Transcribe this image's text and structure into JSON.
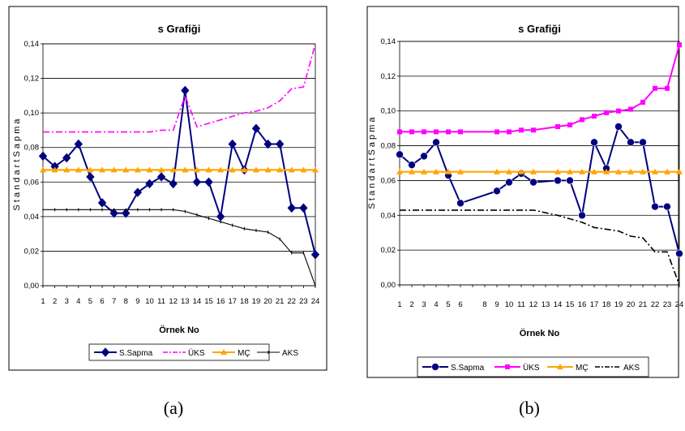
{
  "chart_data": [
    {
      "type": "line",
      "title": "s Grafiği",
      "xlabel": "Örnek No",
      "ylabel": "S t a n d a r t  S a p m a",
      "caption": "(a)",
      "categories": [
        "1",
        "2",
        "3",
        "4",
        "5",
        "6",
        "7",
        "8",
        "9",
        "10",
        "11",
        "12",
        "13",
        "14",
        "15",
        "16",
        "17",
        "18",
        "19",
        "20",
        "21",
        "22",
        "23",
        "24"
      ],
      "ylim": [
        0,
        0.14
      ],
      "yticks": [
        "0,00",
        "0,02",
        "0,04",
        "0,06",
        "0,08",
        "0,10",
        "0,12",
        "0,14"
      ],
      "grid": true,
      "legend": "bottom",
      "series": [
        {
          "name": "S.Sapma",
          "color": "#000080",
          "style": "solid-diamond",
          "values": [
            0.075,
            0.069,
            0.074,
            0.082,
            0.063,
            0.048,
            0.042,
            0.042,
            0.054,
            0.059,
            0.063,
            0.059,
            0.113,
            0.06,
            0.06,
            0.04,
            0.082,
            0.067,
            0.091,
            0.082,
            0.082,
            0.045,
            0.045,
            0.018
          ]
        },
        {
          "name": "ÜKS",
          "color": "#FF00FF",
          "style": "dashdot",
          "values": [
            0.089,
            0.089,
            0.089,
            0.089,
            0.089,
            0.089,
            0.089,
            0.089,
            0.089,
            0.089,
            0.09,
            0.09,
            0.11,
            0.092,
            0.094,
            0.096,
            0.098,
            0.1,
            0.101,
            0.103,
            0.107,
            0.114,
            0.115,
            0.14
          ]
        },
        {
          "name": "MÇ",
          "color": "#FFA500",
          "style": "solid-tri",
          "values": [
            0.067,
            0.067,
            0.067,
            0.067,
            0.067,
            0.067,
            0.067,
            0.067,
            0.067,
            0.067,
            0.067,
            0.067,
            0.067,
            0.067,
            0.067,
            0.067,
            0.067,
            0.067,
            0.067,
            0.067,
            0.067,
            0.067,
            0.067,
            0.067
          ]
        },
        {
          "name": "AKS",
          "color": "#000000",
          "style": "thin-tick",
          "values": [
            0.044,
            0.044,
            0.044,
            0.044,
            0.044,
            0.044,
            0.044,
            0.044,
            0.044,
            0.044,
            0.044,
            0.044,
            0.043,
            0.041,
            0.039,
            0.037,
            0.035,
            0.033,
            0.032,
            0.031,
            0.027,
            0.019,
            0.019,
            0.0
          ]
        }
      ]
    },
    {
      "type": "line",
      "title": "s Grafiği",
      "xlabel": "Örnek No",
      "ylabel": "S t a n d a r t  S a p m a",
      "caption": "(b)",
      "categories": [
        "1",
        "2",
        "3",
        "4",
        "5",
        "6",
        "8",
        "9",
        "10",
        "11",
        "12",
        "13",
        "14",
        "15",
        "16",
        "17",
        "18",
        "19",
        "20",
        "21",
        "22",
        "23",
        "24"
      ],
      "x": [
        1,
        2,
        3,
        4,
        5,
        6,
        9,
        10,
        11,
        12,
        14,
        15,
        16,
        17,
        18,
        19,
        20,
        21,
        22,
        23,
        24
      ],
      "ylim": [
        0,
        0.14
      ],
      "yticks": [
        "0,00",
        "0,02",
        "0,04",
        "0,06",
        "0,08",
        "0,10",
        "0,12",
        "0,14"
      ],
      "grid": true,
      "legend": "bottom",
      "series": [
        {
          "name": "S.Sapma",
          "color": "#000080",
          "style": "solid-dot",
          "values": [
            0.075,
            0.069,
            0.074,
            0.082,
            0.063,
            0.047,
            0.054,
            0.059,
            0.064,
            0.059,
            0.06,
            0.06,
            0.04,
            0.082,
            0.067,
            0.091,
            0.082,
            0.082,
            0.045,
            0.045,
            0.018
          ]
        },
        {
          "name": "ÜKS",
          "color": "#FF00FF",
          "style": "solid-square",
          "values": [
            0.088,
            0.088,
            0.088,
            0.088,
            0.088,
            0.088,
            0.088,
            0.088,
            0.089,
            0.089,
            0.091,
            0.092,
            0.095,
            0.097,
            0.099,
            0.1,
            0.101,
            0.105,
            0.113,
            0.113,
            0.138
          ]
        },
        {
          "name": "MÇ",
          "color": "#FFA500",
          "style": "solid-tri",
          "values": [
            0.065,
            0.065,
            0.065,
            0.065,
            0.065,
            0.065,
            0.065,
            0.065,
            0.065,
            0.065,
            0.065,
            0.065,
            0.065,
            0.065,
            0.065,
            0.065,
            0.065,
            0.065,
            0.065,
            0.065,
            0.065
          ]
        },
        {
          "name": "AKS",
          "color": "#000000",
          "style": "dashdot",
          "values": [
            0.043,
            0.043,
            0.043,
            0.043,
            0.043,
            0.043,
            0.043,
            0.043,
            0.043,
            0.043,
            0.04,
            0.038,
            0.036,
            0.033,
            0.032,
            0.031,
            0.028,
            0.027,
            0.019,
            0.019,
            0.0
          ]
        }
      ]
    }
  ]
}
